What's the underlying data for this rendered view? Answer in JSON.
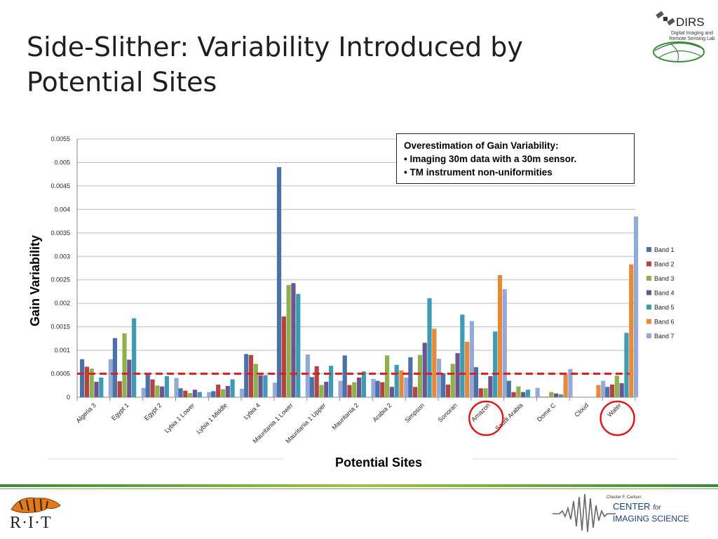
{
  "slide": {
    "title": "Side-Slither: Variability Introduced by Potential Sites"
  },
  "logos": {
    "dirs_name": "DIRS",
    "dirs_sub": "Digital Imaging and Remote Sensing Lab",
    "rit": "R·I·T",
    "cis_small": "Chester F. Carlson",
    "cis_center": "CENTER",
    "cis_for": "for",
    "cis_imaging": "IMAGING SCIENCE"
  },
  "callout": {
    "line1": "Overestimation of Gain Variability:",
    "line2": "• Imaging 30m data with a 30m sensor.",
    "line3": "• TM instrument non-uniformities"
  },
  "colors": {
    "band1": "#4A72A8",
    "band2": "#B24542",
    "band3": "#8FB04E",
    "band4": "#6C5490",
    "band5": "#3D9CB4",
    "band6": "#E5893A",
    "band7": "#94A9D4",
    "threshold": "#E02020",
    "highlight": "#E01818"
  },
  "chart_data": {
    "type": "bar",
    "title": "",
    "xlabel": "Potential Sites",
    "ylabel": "Gain Variability",
    "ylim": [
      0,
      0.0055
    ],
    "yticks": [
      "0",
      "0.0005",
      "0.001",
      "0.0015",
      "0.002",
      "0.0025",
      "0.003",
      "0.0035",
      "0.004",
      "0.0045",
      "0.005",
      "0.0055"
    ],
    "grid": true,
    "legend_position": "right",
    "threshold": 0.0005,
    "highlighted_categories": [
      "Amazon",
      "Water"
    ],
    "categories": [
      "Algeria 3",
      "Egypt 1",
      "Egypt 2",
      "Lybia 1 Lower",
      "Lybia 1 Middle",
      "Lybia 4",
      "Mauritania 1 Lower",
      "Mauritania 1 Upper",
      "Mauritania 2",
      "Arabia 2",
      "Simpson",
      "Sonoran",
      "Amazon",
      "Saudi Arabia",
      "Dome C",
      "Cloud",
      "Water"
    ],
    "series": [
      {
        "name": "Band 1",
        "values": [
          0.00081,
          0.00126,
          0.00052,
          0.00019,
          0.00013,
          0.00092,
          0.0049,
          0.00043,
          0.00089,
          0.00035,
          0.00085,
          0.00051,
          0.00064,
          0.00035,
          1e-05,
          0.0,
          0.00022
        ]
      },
      {
        "name": "Band 2",
        "values": [
          0.00065,
          0.00034,
          0.00038,
          0.00014,
          0.00027,
          0.0009,
          0.00172,
          0.00066,
          0.00026,
          0.00032,
          0.00022,
          0.00027,
          0.00019,
          0.00011,
          1e-05,
          0.0,
          0.00027
        ]
      },
      {
        "name": "Band 3",
        "values": [
          0.00061,
          0.00136,
          0.00025,
          9e-05,
          0.00017,
          0.00071,
          0.00239,
          0.00026,
          0.00032,
          0.00089,
          0.0009,
          0.00071,
          0.00019,
          0.00023,
          0.00011,
          0.0,
          0.00046
        ]
      },
      {
        "name": "Band 4",
        "values": [
          0.00033,
          0.0008,
          0.00023,
          0.00016,
          0.00024,
          0.00047,
          0.00243,
          0.00033,
          0.00042,
          0.00022,
          0.00116,
          0.00094,
          0.00045,
          0.00011,
          8e-05,
          0.0,
          0.0003
        ]
      },
      {
        "name": "Band 5",
        "values": [
          0.00042,
          0.00168,
          0.00045,
          0.00011,
          0.00038,
          0.00047,
          0.0022,
          0.00067,
          0.00055,
          0.00069,
          0.00211,
          0.00176,
          0.0014,
          0.00016,
          6e-05,
          0.0,
          0.00137
        ]
      },
      {
        "name": "Band 6",
        "values": [
          0.0,
          0.0,
          0.0,
          0.0,
          0.0,
          0.0,
          0.0,
          0.0,
          0.0,
          0.00057,
          0.00146,
          0.00118,
          0.0026,
          0.0,
          0.00049,
          0.00026,
          0.00283
        ]
      },
      {
        "name": "Band 7",
        "values": [
          0.00081,
          0.0002,
          0.00041,
          0.00011,
          0.00018,
          0.00031,
          0.00091,
          0.00035,
          0.00039,
          0.00042,
          0.00082,
          0.00162,
          0.0023,
          0.0002,
          0.0006,
          0.00035,
          0.00385
        ]
      }
    ]
  }
}
